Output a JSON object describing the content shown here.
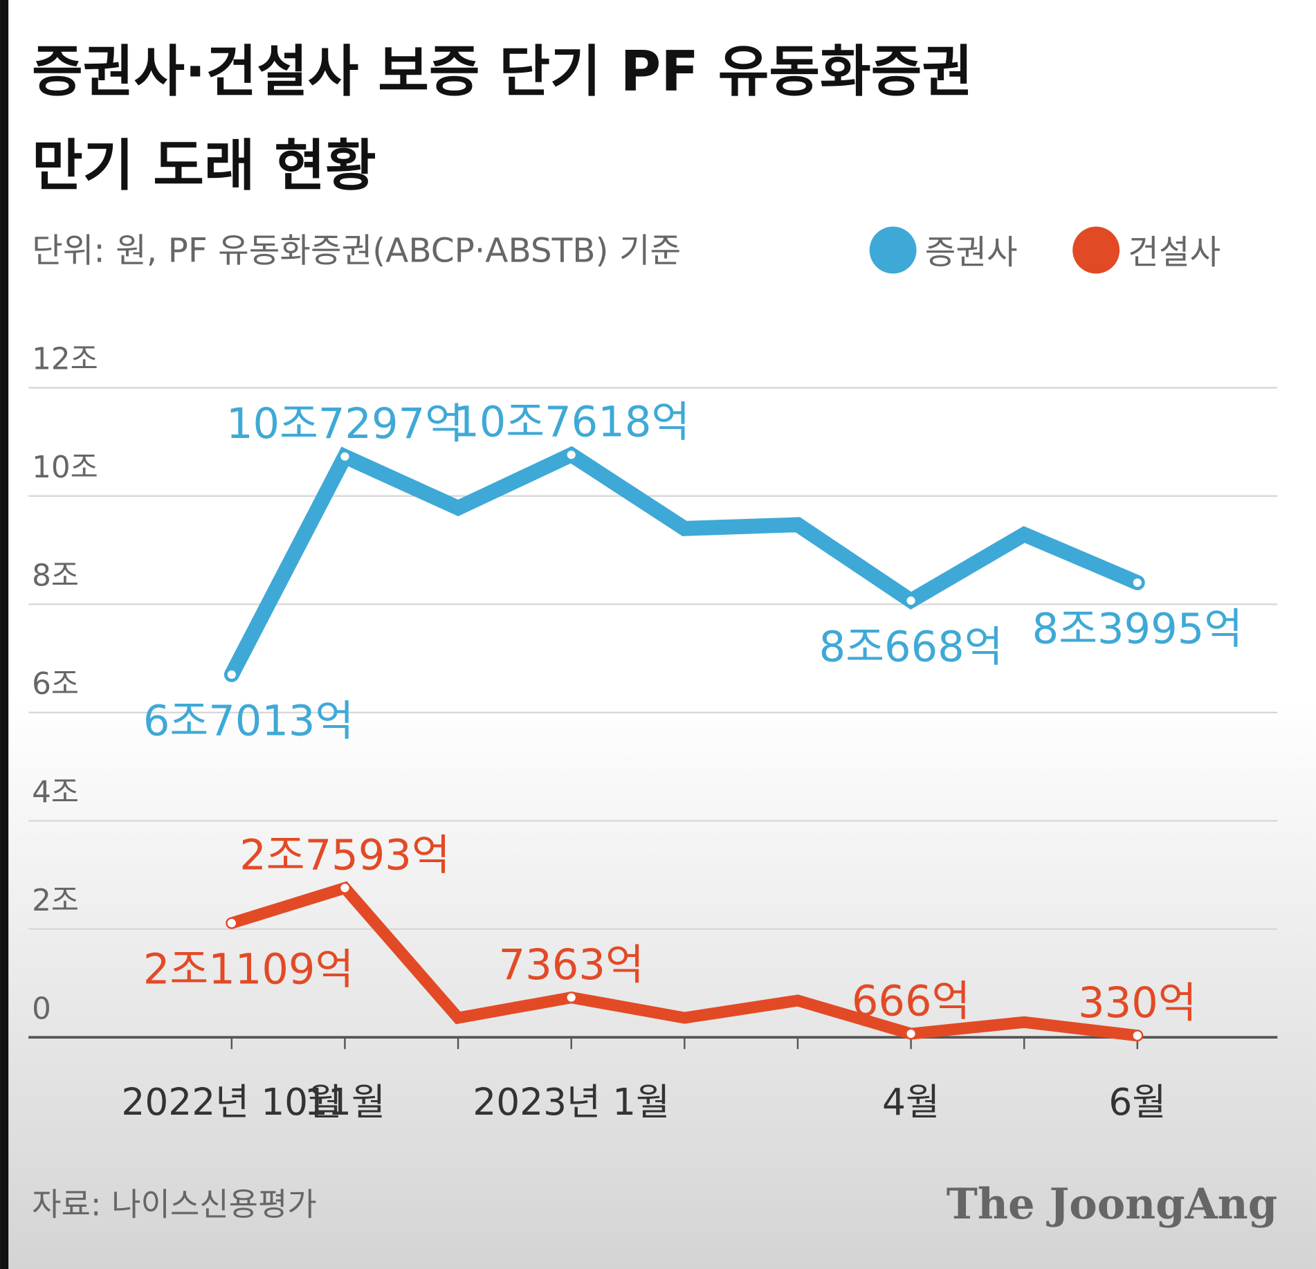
{
  "chart_data": {
    "type": "line",
    "title": [
      "증권사·건설사 보증 단기 PF 유동화증권",
      "만기 도래 현황"
    ],
    "subtitle": "단위: 원, PF 유동화증권(ABCP·ABSTB) 기준",
    "source": "자료: 나이스신용평가",
    "brand": "The JoongAng",
    "categories": [
      "2022년 10월",
      "11월",
      null,
      "2023년 1월",
      null,
      null,
      "4월",
      null,
      "6월"
    ],
    "series": [
      {
        "name": "증권사",
        "color": "#3ea9d6",
        "values": [
          6.7013,
          10.7297,
          9.78,
          10.7618,
          9.4,
          9.47,
          8.0668,
          9.29,
          8.3995
        ],
        "value_labels": [
          "6조7013억",
          "10조7297억",
          null,
          "10조7618억",
          null,
          null,
          "8조668억",
          null,
          "8조3995억"
        ]
      },
      {
        "name": "건설사",
        "color": "#e24a26",
        "values": [
          2.1109,
          2.7593,
          0.36,
          0.7363,
          0.36,
          0.68,
          0.0666,
          0.28,
          0.033
        ],
        "value_labels": [
          "2조1109억",
          "2조7593억",
          null,
          "7363억",
          null,
          null,
          "666억",
          null,
          "330억"
        ]
      }
    ],
    "ylim": [
      0,
      12
    ],
    "yticks": [
      0,
      {
        "value": 2,
        "label": "2조"
      },
      {
        "value": 4,
        "label": "4조"
      },
      {
        "value": 6,
        "label": "6조"
      },
      {
        "value": 8,
        "label": "8조"
      },
      {
        "value": 10,
        "label": "10조"
      },
      {
        "value": 12,
        "label": "12조"
      }
    ],
    "grid": true
  }
}
